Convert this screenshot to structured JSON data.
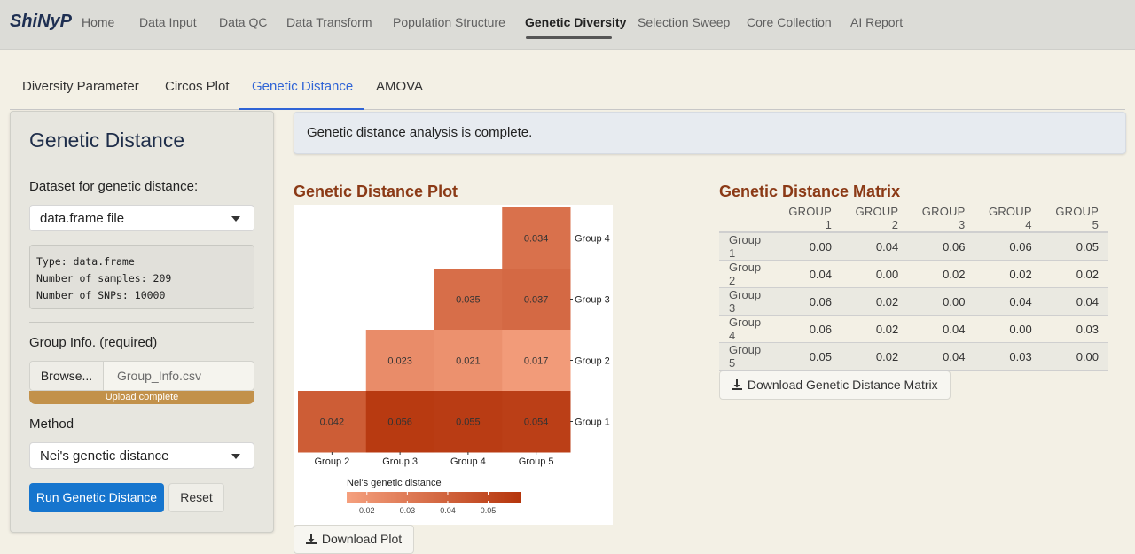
{
  "app": {
    "brand": "ShiNyP"
  },
  "nav": {
    "items": [
      "Home",
      "Data Input",
      "Data QC",
      "Data Transform",
      "Population Structure",
      "Genetic Diversity",
      "Selection Sweep",
      "Core Collection",
      "AI Report"
    ],
    "active": "Genetic Diversity"
  },
  "tabs": {
    "items": [
      "Diversity Parameter",
      "Circos Plot",
      "Genetic Distance",
      "AMOVA"
    ],
    "active": "Genetic Distance"
  },
  "sidebar": {
    "title": "Genetic Distance",
    "dataset_label": "Dataset for genetic distance:",
    "dataset_value": "data.frame file",
    "info_lines": [
      "Type: data.frame",
      "Number of samples: 209",
      "Number of SNPs: 10000"
    ],
    "group_label": "Group Info. (required)",
    "browse_label": "Browse...",
    "file_name": "Group_Info.csv",
    "upload_status": "Upload complete",
    "upload_progress_percent": 100,
    "method_label": "Method",
    "method_value": "Nei's genetic distance",
    "run_button": "Run Genetic Distance",
    "reset_button": "Reset"
  },
  "main": {
    "alert": "Genetic distance analysis is complete.",
    "plot_title": "Genetic Distance Plot",
    "matrix_title": "Genetic Distance Matrix",
    "download_plot": "Download Plot",
    "download_matrix": "Download Genetic Distance Matrix"
  },
  "matrix": {
    "columns": [
      "",
      "GROUP 1",
      "GROUP 2",
      "GROUP 3",
      "GROUP 4",
      "GROUP 5"
    ],
    "rows": [
      [
        "Group 1",
        "0.00",
        "0.04",
        "0.06",
        "0.06",
        "0.05"
      ],
      [
        "Group 2",
        "0.04",
        "0.00",
        "0.02",
        "0.02",
        "0.02"
      ],
      [
        "Group 3",
        "0.06",
        "0.02",
        "0.00",
        "0.04",
        "0.04"
      ],
      [
        "Group 4",
        "0.06",
        "0.02",
        "0.04",
        "0.00",
        "0.03"
      ],
      [
        "Group 5",
        "0.05",
        "0.02",
        "0.04",
        "0.03",
        "0.00"
      ]
    ]
  },
  "chart_data": {
    "type": "heatmap",
    "x_categories": [
      "Group 2",
      "Group 3",
      "Group 4",
      "Group 5"
    ],
    "y_categories": [
      "Group 1",
      "Group 2",
      "Group 3",
      "Group 4"
    ],
    "cells": [
      {
        "x": "Group 5",
        "y": "Group 4",
        "value": 0.034
      },
      {
        "x": "Group 4",
        "y": "Group 3",
        "value": 0.035
      },
      {
        "x": "Group 5",
        "y": "Group 3",
        "value": 0.037
      },
      {
        "x": "Group 3",
        "y": "Group 2",
        "value": 0.023
      },
      {
        "x": "Group 4",
        "y": "Group 2",
        "value": 0.021
      },
      {
        "x": "Group 5",
        "y": "Group 2",
        "value": 0.017
      },
      {
        "x": "Group 2",
        "y": "Group 1",
        "value": 0.042
      },
      {
        "x": "Group 3",
        "y": "Group 1",
        "value": 0.056
      },
      {
        "x": "Group 4",
        "y": "Group 1",
        "value": 0.055
      },
      {
        "x": "Group 5",
        "y": "Group 1",
        "value": 0.054
      }
    ],
    "legend_title": "Nei's genetic distance",
    "legend_ticks": [
      "0.02",
      "0.03",
      "0.04",
      "0.05"
    ],
    "color_low": "#f5a07e",
    "color_high": "#b5350c",
    "value_range": [
      0.015,
      0.058
    ]
  }
}
